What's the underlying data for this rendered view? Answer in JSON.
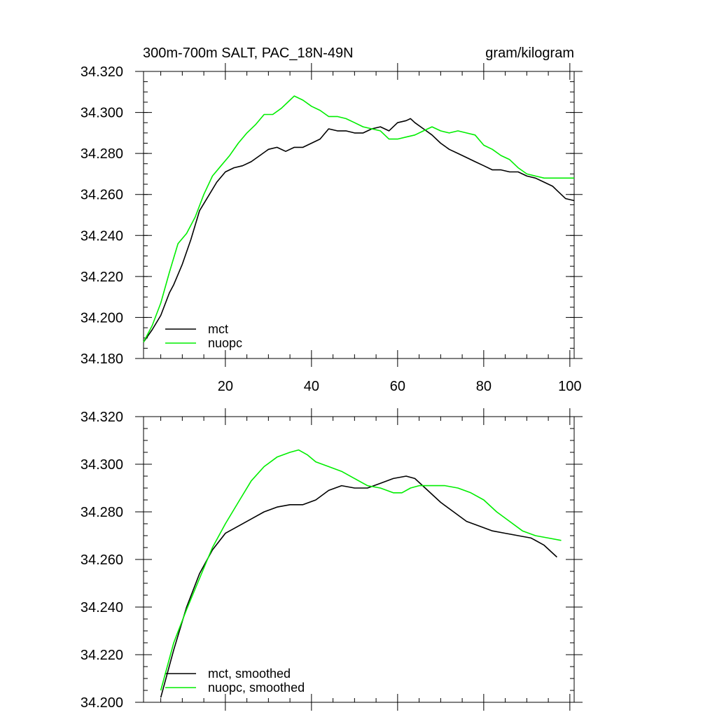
{
  "figure": {
    "title_left": "300m-700m SALT, PAC_18N-49N",
    "title_right": "gram/kilogram"
  },
  "colors": {
    "mct": "#000000",
    "nuopc": "#00ee00",
    "axis": "#000000"
  },
  "chart_data": [
    {
      "type": "line",
      "title": "300m-700m SALT, PAC_18N-49N",
      "units": "gram/kilogram",
      "xlim": [
        1,
        101
      ],
      "ylim": [
        34.18,
        34.32
      ],
      "xticks": [
        20,
        40,
        60,
        80,
        100
      ],
      "xtick_labels": [
        "20",
        "40",
        "60",
        "80",
        "100"
      ],
      "yticks": [
        34.18,
        34.2,
        34.22,
        34.24,
        34.26,
        34.28,
        34.3,
        34.32
      ],
      "ytick_labels": [
        "34.180",
        "34.200",
        "34.220",
        "34.240",
        "34.260",
        "34.280",
        "34.300",
        "34.320"
      ],
      "legend_position": "bottom-left",
      "grid": false,
      "series": [
        {
          "name": "mct",
          "color_key": "mct",
          "x": [
            1,
            3,
            5,
            7,
            8,
            10,
            12,
            14,
            16,
            18,
            20,
            22,
            24,
            26,
            28,
            30,
            32,
            34,
            36,
            38,
            40,
            42,
            44,
            46,
            48,
            50,
            52,
            54,
            56,
            58,
            60,
            62,
            63,
            64,
            66,
            68,
            70,
            72,
            74,
            76,
            78,
            80,
            82,
            84,
            86,
            88,
            90,
            92,
            94,
            96,
            97,
            99,
            101
          ],
          "y": [
            34.188,
            34.194,
            34.201,
            34.212,
            34.216,
            34.226,
            34.238,
            34.252,
            34.259,
            34.266,
            34.271,
            34.273,
            34.274,
            34.276,
            34.279,
            34.282,
            34.283,
            34.281,
            34.283,
            34.283,
            34.285,
            34.287,
            34.292,
            34.291,
            34.291,
            34.29,
            34.29,
            34.292,
            34.293,
            34.291,
            34.295,
            34.296,
            34.297,
            34.295,
            34.292,
            34.289,
            34.285,
            34.282,
            34.28,
            34.278,
            34.276,
            34.274,
            34.272,
            34.272,
            34.271,
            34.271,
            34.269,
            34.268,
            34.266,
            34.264,
            34.262,
            34.258,
            34.257
          ]
        },
        {
          "name": "nuopc",
          "color_key": "nuopc",
          "x": [
            1,
            3,
            5,
            7,
            9,
            11,
            13,
            15,
            17,
            19,
            21,
            23,
            25,
            27,
            29,
            31,
            33,
            35,
            36,
            38,
            40,
            42,
            44,
            46,
            48,
            50,
            52,
            54,
            56,
            58,
            60,
            62,
            64,
            66,
            68,
            70,
            72,
            74,
            76,
            78,
            80,
            82,
            84,
            86,
            88,
            90,
            92,
            94,
            96,
            98,
            100,
            101
          ],
          "y": [
            34.188,
            34.196,
            34.207,
            34.222,
            34.236,
            34.241,
            34.249,
            34.26,
            34.269,
            34.274,
            34.279,
            34.285,
            34.29,
            34.294,
            34.299,
            34.299,
            34.302,
            34.306,
            34.308,
            34.306,
            34.303,
            34.301,
            34.298,
            34.298,
            34.297,
            34.295,
            34.293,
            34.292,
            34.291,
            34.287,
            34.287,
            34.288,
            34.289,
            34.291,
            34.293,
            34.291,
            34.29,
            34.291,
            34.29,
            34.289,
            34.284,
            34.282,
            34.279,
            34.277,
            34.273,
            34.27,
            34.269,
            34.268,
            34.268,
            34.268,
            34.268,
            34.268
          ]
        }
      ]
    },
    {
      "type": "line",
      "xlim": [
        1,
        101
      ],
      "ylim": [
        34.2,
        34.32
      ],
      "xticks": [
        20,
        40,
        60,
        80,
        100
      ],
      "yticks": [
        34.2,
        34.22,
        34.24,
        34.26,
        34.28,
        34.3,
        34.32
      ],
      "ytick_labels": [
        "34.200",
        "34.220",
        "34.240",
        "34.260",
        "34.280",
        "34.300",
        "34.320"
      ],
      "legend_position": "bottom-left",
      "grid": false,
      "series": [
        {
          "name": "mct, smoothed",
          "color_key": "mct",
          "x": [
            5,
            8,
            11,
            14,
            17,
            20,
            23,
            26,
            29,
            32,
            35,
            38,
            41,
            44,
            47,
            50,
            53,
            56,
            59,
            62,
            64,
            67,
            70,
            73,
            76,
            79,
            82,
            85,
            88,
            91,
            94,
            97
          ],
          "y": [
            34.202,
            34.222,
            34.24,
            34.254,
            34.264,
            34.271,
            34.274,
            34.277,
            34.28,
            34.282,
            34.283,
            34.283,
            34.285,
            34.289,
            34.291,
            34.29,
            34.29,
            34.292,
            34.294,
            34.295,
            34.294,
            34.289,
            34.284,
            34.28,
            34.276,
            34.274,
            34.272,
            34.271,
            34.27,
            34.269,
            34.266,
            34.261
          ]
        },
        {
          "name": "nuopc, smoothed",
          "color_key": "nuopc",
          "x": [
            5,
            8,
            11,
            14,
            17,
            20,
            23,
            26,
            29,
            32,
            35,
            37,
            39,
            41,
            44,
            47,
            50,
            53,
            56,
            59,
            61,
            63,
            65,
            68,
            71,
            74,
            77,
            80,
            83,
            86,
            89,
            92,
            95,
            98
          ],
          "y": [
            34.205,
            34.225,
            34.239,
            34.252,
            34.265,
            34.275,
            34.284,
            34.293,
            34.299,
            34.303,
            34.305,
            34.306,
            34.304,
            34.301,
            34.299,
            34.297,
            34.294,
            34.291,
            34.29,
            34.288,
            34.288,
            34.29,
            34.291,
            34.291,
            34.291,
            34.29,
            34.288,
            34.285,
            34.28,
            34.276,
            34.272,
            34.27,
            34.269,
            34.268
          ]
        }
      ]
    }
  ]
}
